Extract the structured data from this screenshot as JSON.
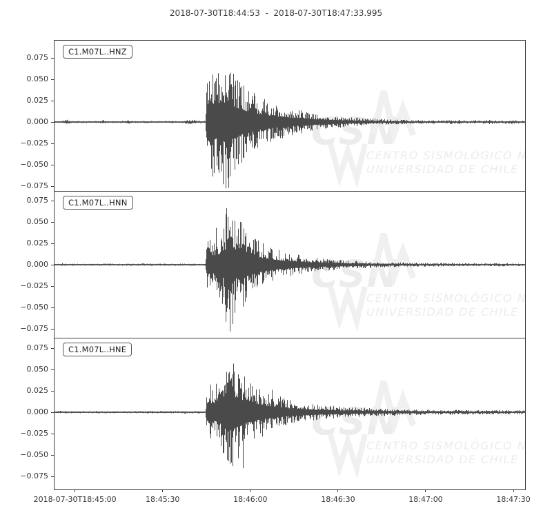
{
  "title": "2018-07-30T18:44:53  -  2018-07-30T18:47:33.995",
  "watermark": {
    "acronym": "CSN",
    "line1": "CENTRO SISMOLÓGICO NACIONAL",
    "line2": "UNIVERSIDAD DE CHILE"
  },
  "colors": {
    "trace": "#4a4a4a",
    "frame": "#3c3c3c",
    "tick_text": "#333333",
    "watermark_shape": "#f0f0f0",
    "watermark_text": "#ececec"
  },
  "chart_data": {
    "type": "line",
    "title": "2018-07-30T18:44:53  -  2018-07-30T18:47:33.995",
    "x_start": "2018-07-30T18:44:53",
    "x_end": "2018-07-30T18:47:33.995",
    "duration_seconds": 160.995,
    "x_tick_labels": [
      "2018-07-30T18:45:00",
      "18:45:30",
      "18:46:00",
      "18:46:30",
      "18:47:00",
      "18:47:30"
    ],
    "x_tick_offsets_seconds": [
      7,
      37,
      67,
      97,
      127,
      157
    ],
    "y_tick_labels": [
      "0.075",
      "0.050",
      "0.025",
      "0.000",
      "−0.025",
      "−0.050",
      "−0.075"
    ],
    "y_tick_values": [
      0.075,
      0.05,
      0.025,
      0,
      -0.025,
      -0.05,
      -0.075
    ],
    "ylim": [
      -0.095,
      0.095
    ],
    "grid": false,
    "legend_position": "inside-top-left-box-per-subplot",
    "series": [
      {
        "name": "C1.M07L..HNZ",
        "event_onset_seconds": 52,
        "peak_amplitude": 0.083,
        "envelope": [
          [
            0,
            0.0013
          ],
          [
            2.5,
            0.0013
          ],
          [
            3,
            0.003
          ],
          [
            5,
            0.0028
          ],
          [
            5.5,
            0.0013
          ],
          [
            16,
            0.0013
          ],
          [
            16.5,
            0.0025
          ],
          [
            17.5,
            0.0013
          ],
          [
            24.5,
            0.0013
          ],
          [
            25,
            0.0025
          ],
          [
            26,
            0.0013
          ],
          [
            44.5,
            0.0013
          ],
          [
            45,
            0.003
          ],
          [
            48,
            0.0028
          ],
          [
            48.5,
            0.0013
          ],
          [
            51.6,
            0.0013
          ],
          [
            52,
            0.068
          ],
          [
            53,
            0.075
          ],
          [
            55,
            0.062
          ],
          [
            57,
            0.07
          ],
          [
            59.5,
            0.083
          ],
          [
            61,
            0.06
          ],
          [
            63,
            0.052
          ],
          [
            66,
            0.04
          ],
          [
            69,
            0.033
          ],
          [
            72,
            0.027
          ],
          [
            76,
            0.021
          ],
          [
            80,
            0.017
          ],
          [
            85,
            0.013
          ],
          [
            90,
            0.0095
          ],
          [
            95,
            0.0075
          ],
          [
            100,
            0.006
          ],
          [
            105,
            0.0048
          ],
          [
            110,
            0.0038
          ],
          [
            115,
            0.003
          ],
          [
            120,
            0.0026
          ],
          [
            126,
            0.0022
          ],
          [
            132,
            0.0019
          ],
          [
            138,
            0.0024
          ],
          [
            143,
            0.0019
          ],
          [
            148,
            0.0026
          ],
          [
            152,
            0.0019
          ],
          [
            156,
            0.0023
          ],
          [
            161,
            0.0018
          ]
        ]
      },
      {
        "name": "C1.M07L..HNN",
        "event_onset_seconds": 52,
        "peak_amplitude": 0.082,
        "envelope": [
          [
            0,
            0.0013
          ],
          [
            2,
            0.0013
          ],
          [
            2.5,
            0.0026
          ],
          [
            4,
            0.0013
          ],
          [
            29.5,
            0.0013
          ],
          [
            30,
            0.0022
          ],
          [
            31,
            0.0013
          ],
          [
            51.6,
            0.0013
          ],
          [
            52,
            0.03
          ],
          [
            54,
            0.033
          ],
          [
            56,
            0.038
          ],
          [
            58,
            0.05
          ],
          [
            59.5,
            0.082
          ],
          [
            61,
            0.07
          ],
          [
            62.5,
            0.045
          ],
          [
            64,
            0.056
          ],
          [
            66,
            0.042
          ],
          [
            68.5,
            0.032
          ],
          [
            72,
            0.024
          ],
          [
            76,
            0.018
          ],
          [
            80,
            0.014
          ],
          [
            85,
            0.0105
          ],
          [
            90,
            0.008
          ],
          [
            95,
            0.0065
          ],
          [
            101,
            0.005
          ],
          [
            107,
            0.004
          ],
          [
            114,
            0.0032
          ],
          [
            122,
            0.0026
          ],
          [
            130,
            0.0021
          ],
          [
            140,
            0.0023
          ],
          [
            147,
            0.0019
          ],
          [
            153,
            0.0022
          ],
          [
            161,
            0.0018
          ]
        ]
      },
      {
        "name": "C1.M07L..HNE",
        "event_onset_seconds": 52,
        "peak_amplitude": 0.078,
        "envelope": [
          [
            0,
            0.0013
          ],
          [
            1.5,
            0.0013
          ],
          [
            2,
            0.0024
          ],
          [
            3.5,
            0.0013
          ],
          [
            44,
            0.0013
          ],
          [
            44.5,
            0.0022
          ],
          [
            45.5,
            0.0013
          ],
          [
            51.6,
            0.0013
          ],
          [
            52,
            0.032
          ],
          [
            54,
            0.036
          ],
          [
            56,
            0.032
          ],
          [
            58,
            0.06
          ],
          [
            59.5,
            0.078
          ],
          [
            61,
            0.06
          ],
          [
            63,
            0.055
          ],
          [
            65,
            0.042
          ],
          [
            68,
            0.033
          ],
          [
            71.5,
            0.026
          ],
          [
            75,
            0.021
          ],
          [
            79,
            0.016
          ],
          [
            84,
            0.012
          ],
          [
            90,
            0.009
          ],
          [
            96,
            0.0072
          ],
          [
            103,
            0.0058
          ],
          [
            110,
            0.0048
          ],
          [
            118,
            0.004
          ],
          [
            126,
            0.0033
          ],
          [
            134,
            0.0029
          ],
          [
            142,
            0.0027
          ],
          [
            150,
            0.0025
          ],
          [
            161,
            0.0022
          ]
        ]
      }
    ]
  }
}
